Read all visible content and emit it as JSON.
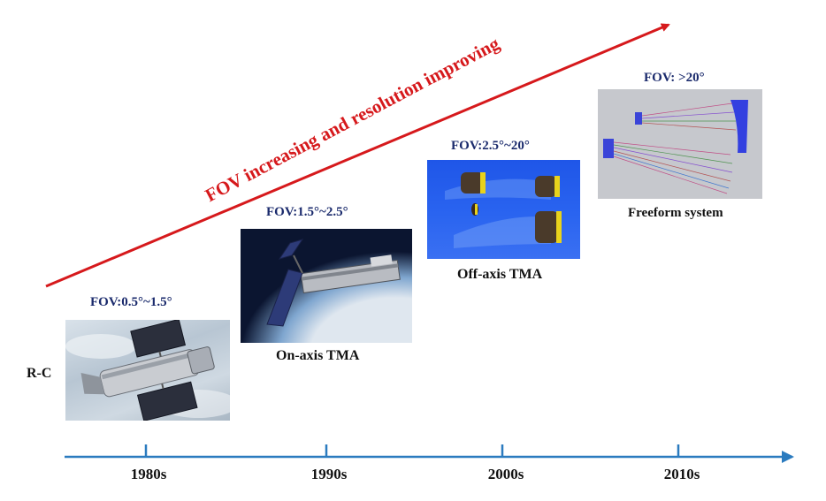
{
  "trend": {
    "label": "FOV increasing and resolution improving",
    "color": "#d6191c"
  },
  "axis": {
    "color": "#2b7bbf",
    "decades": [
      "1980s",
      "1990s",
      "2000s",
      "2010s"
    ]
  },
  "side_label": "R-C",
  "stages": [
    {
      "fov": "FOV:0.5°~1.5°",
      "caption": "",
      "image": "hubble-telescope-photo"
    },
    {
      "fov": "FOV:1.5°~2.5°",
      "caption": "On-axis TMA",
      "image": "satellite-over-earth-photo"
    },
    {
      "fov": "FOV:2.5°~20°",
      "caption": "Off-axis TMA",
      "image": "off-axis-mirror-render"
    },
    {
      "fov": "FOV: >20°",
      "caption": "Freeform system",
      "image": "freeform-raytrace-diagram"
    }
  ],
  "colors": {
    "fov_text": "#1a2a6c",
    "arrow": "#d6191c",
    "timeline": "#2b7bbf"
  }
}
